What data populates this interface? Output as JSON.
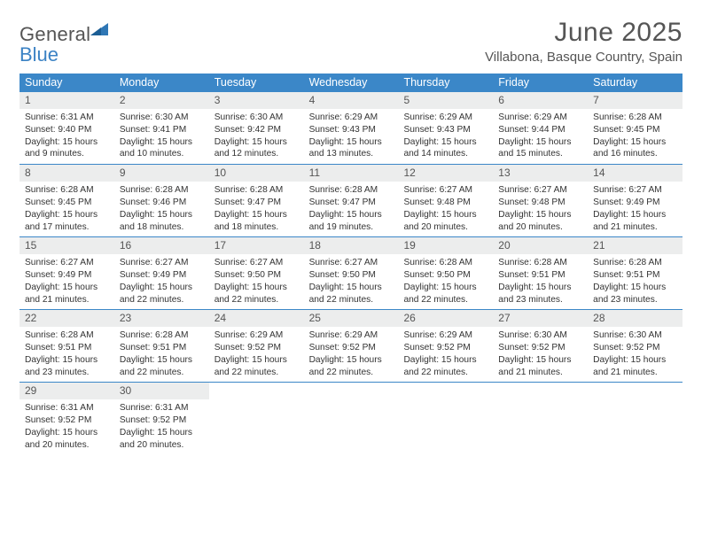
{
  "logo": {
    "line1": "General",
    "line2": "Blue",
    "triangle_color": "#2f77b5"
  },
  "title": "June 2025",
  "location": "Villabona, Basque Country, Spain",
  "colors": {
    "header_bg": "#3b87c8",
    "header_text": "#ffffff",
    "daynum_bg": "#eceded",
    "body_text": "#333333",
    "title_text": "#555555",
    "rule": "#3b87c8"
  },
  "weekdays": [
    "Sunday",
    "Monday",
    "Tuesday",
    "Wednesday",
    "Thursday",
    "Friday",
    "Saturday"
  ],
  "weeks": [
    [
      {
        "n": "1",
        "sr": "Sunrise: 6:31 AM",
        "ss": "Sunset: 9:40 PM",
        "dl": "Daylight: 15 hours and 9 minutes."
      },
      {
        "n": "2",
        "sr": "Sunrise: 6:30 AM",
        "ss": "Sunset: 9:41 PM",
        "dl": "Daylight: 15 hours and 10 minutes."
      },
      {
        "n": "3",
        "sr": "Sunrise: 6:30 AM",
        "ss": "Sunset: 9:42 PM",
        "dl": "Daylight: 15 hours and 12 minutes."
      },
      {
        "n": "4",
        "sr": "Sunrise: 6:29 AM",
        "ss": "Sunset: 9:43 PM",
        "dl": "Daylight: 15 hours and 13 minutes."
      },
      {
        "n": "5",
        "sr": "Sunrise: 6:29 AM",
        "ss": "Sunset: 9:43 PM",
        "dl": "Daylight: 15 hours and 14 minutes."
      },
      {
        "n": "6",
        "sr": "Sunrise: 6:29 AM",
        "ss": "Sunset: 9:44 PM",
        "dl": "Daylight: 15 hours and 15 minutes."
      },
      {
        "n": "7",
        "sr": "Sunrise: 6:28 AM",
        "ss": "Sunset: 9:45 PM",
        "dl": "Daylight: 15 hours and 16 minutes."
      }
    ],
    [
      {
        "n": "8",
        "sr": "Sunrise: 6:28 AM",
        "ss": "Sunset: 9:45 PM",
        "dl": "Daylight: 15 hours and 17 minutes."
      },
      {
        "n": "9",
        "sr": "Sunrise: 6:28 AM",
        "ss": "Sunset: 9:46 PM",
        "dl": "Daylight: 15 hours and 18 minutes."
      },
      {
        "n": "10",
        "sr": "Sunrise: 6:28 AM",
        "ss": "Sunset: 9:47 PM",
        "dl": "Daylight: 15 hours and 18 minutes."
      },
      {
        "n": "11",
        "sr": "Sunrise: 6:28 AM",
        "ss": "Sunset: 9:47 PM",
        "dl": "Daylight: 15 hours and 19 minutes."
      },
      {
        "n": "12",
        "sr": "Sunrise: 6:27 AM",
        "ss": "Sunset: 9:48 PM",
        "dl": "Daylight: 15 hours and 20 minutes."
      },
      {
        "n": "13",
        "sr": "Sunrise: 6:27 AM",
        "ss": "Sunset: 9:48 PM",
        "dl": "Daylight: 15 hours and 20 minutes."
      },
      {
        "n": "14",
        "sr": "Sunrise: 6:27 AM",
        "ss": "Sunset: 9:49 PM",
        "dl": "Daylight: 15 hours and 21 minutes."
      }
    ],
    [
      {
        "n": "15",
        "sr": "Sunrise: 6:27 AM",
        "ss": "Sunset: 9:49 PM",
        "dl": "Daylight: 15 hours and 21 minutes."
      },
      {
        "n": "16",
        "sr": "Sunrise: 6:27 AM",
        "ss": "Sunset: 9:49 PM",
        "dl": "Daylight: 15 hours and 22 minutes."
      },
      {
        "n": "17",
        "sr": "Sunrise: 6:27 AM",
        "ss": "Sunset: 9:50 PM",
        "dl": "Daylight: 15 hours and 22 minutes."
      },
      {
        "n": "18",
        "sr": "Sunrise: 6:27 AM",
        "ss": "Sunset: 9:50 PM",
        "dl": "Daylight: 15 hours and 22 minutes."
      },
      {
        "n": "19",
        "sr": "Sunrise: 6:28 AM",
        "ss": "Sunset: 9:50 PM",
        "dl": "Daylight: 15 hours and 22 minutes."
      },
      {
        "n": "20",
        "sr": "Sunrise: 6:28 AM",
        "ss": "Sunset: 9:51 PM",
        "dl": "Daylight: 15 hours and 23 minutes."
      },
      {
        "n": "21",
        "sr": "Sunrise: 6:28 AM",
        "ss": "Sunset: 9:51 PM",
        "dl": "Daylight: 15 hours and 23 minutes."
      }
    ],
    [
      {
        "n": "22",
        "sr": "Sunrise: 6:28 AM",
        "ss": "Sunset: 9:51 PM",
        "dl": "Daylight: 15 hours and 23 minutes."
      },
      {
        "n": "23",
        "sr": "Sunrise: 6:28 AM",
        "ss": "Sunset: 9:51 PM",
        "dl": "Daylight: 15 hours and 22 minutes."
      },
      {
        "n": "24",
        "sr": "Sunrise: 6:29 AM",
        "ss": "Sunset: 9:52 PM",
        "dl": "Daylight: 15 hours and 22 minutes."
      },
      {
        "n": "25",
        "sr": "Sunrise: 6:29 AM",
        "ss": "Sunset: 9:52 PM",
        "dl": "Daylight: 15 hours and 22 minutes."
      },
      {
        "n": "26",
        "sr": "Sunrise: 6:29 AM",
        "ss": "Sunset: 9:52 PM",
        "dl": "Daylight: 15 hours and 22 minutes."
      },
      {
        "n": "27",
        "sr": "Sunrise: 6:30 AM",
        "ss": "Sunset: 9:52 PM",
        "dl": "Daylight: 15 hours and 21 minutes."
      },
      {
        "n": "28",
        "sr": "Sunrise: 6:30 AM",
        "ss": "Sunset: 9:52 PM",
        "dl": "Daylight: 15 hours and 21 minutes."
      }
    ],
    [
      {
        "n": "29",
        "sr": "Sunrise: 6:31 AM",
        "ss": "Sunset: 9:52 PM",
        "dl": "Daylight: 15 hours and 20 minutes."
      },
      {
        "n": "30",
        "sr": "Sunrise: 6:31 AM",
        "ss": "Sunset: 9:52 PM",
        "dl": "Daylight: 15 hours and 20 minutes."
      },
      null,
      null,
      null,
      null,
      null
    ]
  ]
}
